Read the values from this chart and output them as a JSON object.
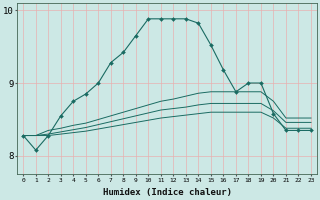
{
  "xlabel": "Humidex (Indice chaleur)",
  "x": [
    0,
    1,
    2,
    3,
    4,
    5,
    6,
    7,
    8,
    9,
    10,
    11,
    12,
    13,
    14,
    15,
    16,
    17,
    18,
    19,
    20,
    21,
    22,
    23
  ],
  "line1": [
    8.28,
    8.08,
    8.28,
    8.55,
    8.75,
    8.85,
    9.0,
    9.28,
    9.42,
    9.65,
    9.88,
    9.88,
    9.88,
    9.88,
    9.82,
    9.52,
    9.18,
    8.88,
    9.0,
    9.0,
    8.58,
    8.35,
    8.35,
    8.35
  ],
  "line2": [
    8.28,
    8.28,
    8.35,
    8.38,
    8.42,
    8.45,
    8.5,
    8.55,
    8.6,
    8.65,
    8.7,
    8.75,
    8.78,
    8.82,
    8.86,
    8.88,
    8.88,
    8.88,
    8.88,
    8.88,
    8.75,
    8.52,
    8.52,
    8.52
  ],
  "line3": [
    8.28,
    8.28,
    8.3,
    8.33,
    8.36,
    8.39,
    8.43,
    8.47,
    8.51,
    8.55,
    8.59,
    8.63,
    8.65,
    8.67,
    8.7,
    8.72,
    8.72,
    8.72,
    8.72,
    8.72,
    8.62,
    8.46,
    8.46,
    8.46
  ],
  "line4": [
    8.28,
    8.28,
    8.28,
    8.3,
    8.32,
    8.34,
    8.37,
    8.4,
    8.43,
    8.46,
    8.49,
    8.52,
    8.54,
    8.56,
    8.58,
    8.6,
    8.6,
    8.6,
    8.6,
    8.6,
    8.52,
    8.38,
    8.38,
    8.38
  ],
  "bg_color": "#cce8e5",
  "grid_color": "#e8b0b0",
  "line_color": "#1a6b62",
  "ylim": [
    7.75,
    10.1
  ],
  "yticks": [
    8,
    9,
    10
  ],
  "xticks": [
    0,
    1,
    2,
    3,
    4,
    5,
    6,
    7,
    8,
    9,
    10,
    11,
    12,
    13,
    14,
    15,
    16,
    17,
    18,
    19,
    20,
    21,
    22,
    23
  ]
}
